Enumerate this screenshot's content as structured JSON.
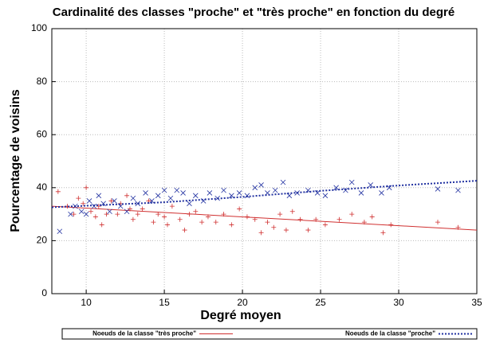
{
  "chart_data": {
    "type": "scatter",
    "title": "Cardinalité des classes \"proche\" et \"très proche\" en fonction du degré",
    "xlabel": "Degré moyen",
    "ylabel": "Pourcentage de voisins",
    "xlim": [
      7.8,
      35
    ],
    "ylim": [
      0,
      100
    ],
    "xticks": [
      10,
      15,
      20,
      25,
      30,
      35
    ],
    "yticks": [
      0,
      20,
      40,
      60,
      80,
      100
    ],
    "grid": true,
    "series": [
      {
        "name": "Noeuds de la classe \"très proche\"",
        "color": "#d03030",
        "marker": "plus",
        "line_style": "solid",
        "x": [
          8.2,
          8.8,
          9.2,
          9.5,
          9.8,
          10,
          10.3,
          10.6,
          10.8,
          11,
          11.3,
          11.6,
          12,
          12.2,
          12.6,
          12.8,
          13,
          13.3,
          13.6,
          14,
          14.3,
          14.6,
          15,
          15.2,
          15.5,
          16,
          16.3,
          16.6,
          17,
          17.4,
          17.8,
          18.3,
          18.8,
          19.3,
          19.8,
          20.3,
          20.8,
          21.2,
          21.6,
          22,
          22.4,
          22.8,
          23.2,
          23.7,
          24.2,
          24.7,
          25.3,
          26.2,
          27,
          27.8,
          28.3,
          29,
          29.5,
          32.5,
          33.8
        ],
        "values": [
          38.5,
          33,
          30,
          36,
          34,
          40,
          31,
          29,
          33,
          26,
          30,
          35,
          30,
          34,
          37,
          32,
          28,
          30,
          32,
          35,
          27,
          30,
          29,
          26,
          33,
          28,
          24,
          30,
          31,
          27,
          29,
          27,
          30,
          26,
          32,
          29,
          28,
          23,
          27,
          25,
          30,
          24,
          31,
          28,
          24,
          28,
          26,
          28,
          30,
          27,
          29,
          23,
          26,
          27,
          25
        ],
        "fit_x": [
          7.8,
          35
        ],
        "fit_values": [
          33,
          24
        ]
      },
      {
        "name": "Noeuds de la classe \"proche\"",
        "color": "#2030a0",
        "marker": "cross",
        "line_style": "dotted",
        "x": [
          8.3,
          9,
          9.3,
          9.7,
          10,
          10.2,
          10.5,
          10.8,
          11.1,
          11.5,
          11.8,
          12.2,
          12.6,
          13,
          13.3,
          13.8,
          14.2,
          14.6,
          15,
          15.4,
          15.8,
          16.2,
          16.6,
          17,
          17.5,
          17.9,
          18.4,
          18.8,
          19.3,
          19.8,
          20.3,
          20.8,
          21.2,
          21.6,
          22.1,
          22.6,
          23,
          23.5,
          24.2,
          24.8,
          25.3,
          26,
          26.6,
          27,
          27.6,
          28.2,
          28.9,
          29.4,
          32.5,
          33.8
        ],
        "values": [
          23.5,
          30,
          33,
          31,
          30,
          35,
          33,
          37,
          34,
          31,
          35,
          33,
          31,
          36,
          34,
          38,
          35,
          37,
          39,
          36,
          39,
          38,
          34,
          37,
          35,
          38,
          36,
          39,
          37,
          38,
          37,
          40,
          41,
          38,
          39,
          42,
          37,
          38,
          39,
          38,
          37,
          40,
          39,
          42,
          38,
          41,
          38,
          40,
          39.5,
          39
        ],
        "fit_x": [
          7.8,
          15,
          20,
          25,
          30,
          35
        ],
        "fit_values": [
          32.6,
          34.5,
          36.5,
          38.8,
          40.8,
          42.6
        ]
      }
    ]
  }
}
